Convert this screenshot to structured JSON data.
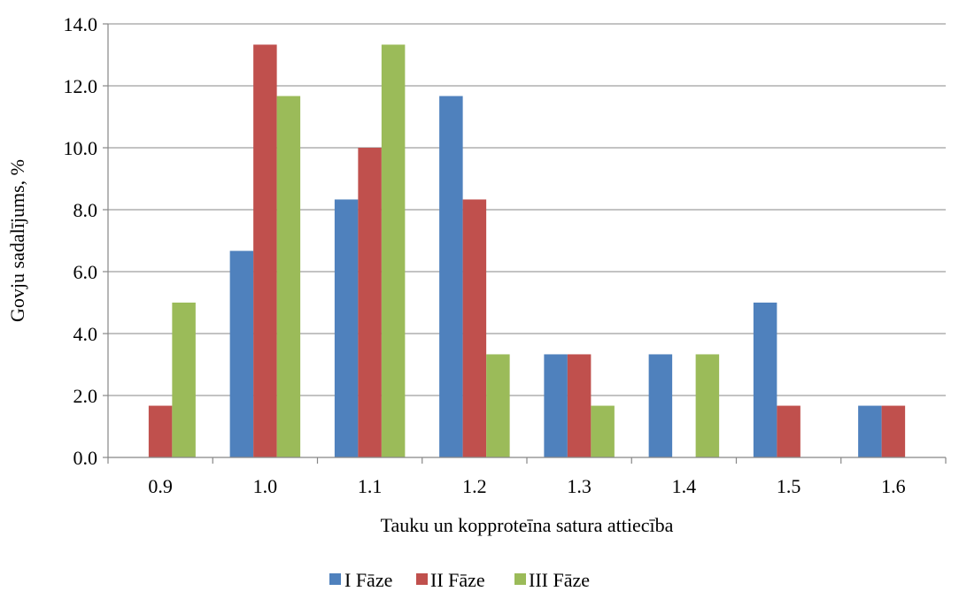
{
  "chart_data": {
    "type": "bar",
    "title": "",
    "xlabel": "Tauku un kopproteīna satura attiecība",
    "ylabel": "Govju sadalījums, %",
    "categories": [
      "0.9",
      "1.0",
      "1.1",
      "1.2",
      "1.3",
      "1.4",
      "1.5",
      "1.6"
    ],
    "series": [
      {
        "name": "I Fāze",
        "color": "#4F81BD",
        "values": [
          0,
          6.67,
          8.33,
          11.67,
          3.33,
          3.33,
          5.0,
          1.67
        ]
      },
      {
        "name": "II Fāze",
        "color": "#C0504D",
        "values": [
          1.67,
          13.33,
          10.0,
          8.33,
          3.33,
          0,
          1.67,
          1.67
        ]
      },
      {
        "name": "III Fāze",
        "color": "#9BBB59",
        "values": [
          5.0,
          11.67,
          13.33,
          3.33,
          1.67,
          3.33,
          0,
          0
        ]
      }
    ],
    "ylim": [
      0,
      14
    ],
    "yticks": [
      "0.0",
      "2.0",
      "4.0",
      "6.0",
      "8.0",
      "10.0",
      "12.0",
      "14.0"
    ],
    "grid": true,
    "legend_position": "bottom"
  }
}
